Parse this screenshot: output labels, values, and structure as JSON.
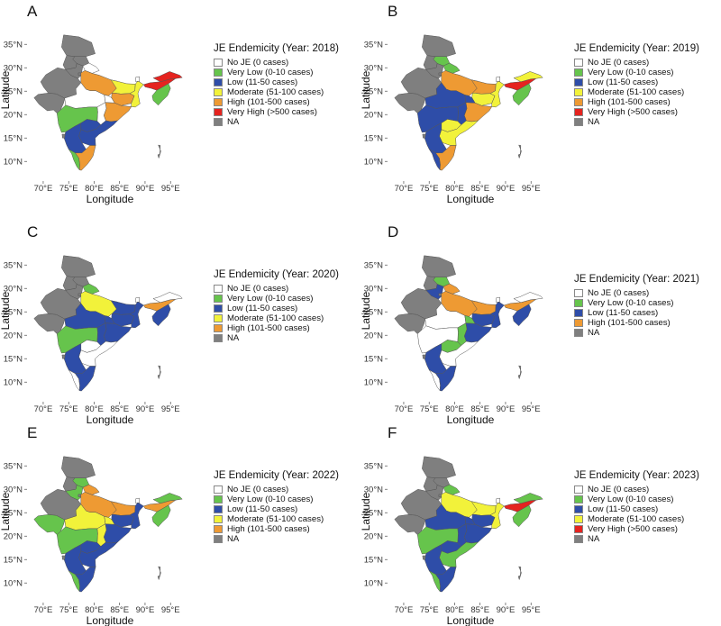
{
  "colors": {
    "No JE": "#ffffff",
    "Very Low": "#66c44c",
    "Low": "#2e4da8",
    "Moderate": "#f2f23a",
    "High": "#ee9a33",
    "Very High": "#e5231f",
    "NA": "#7f7f7f"
  },
  "labels": {
    "No JE": "No JE (0 cases)",
    "Very Low": "Very Low (0-10 cases)",
    "Low": "Low (11-50 cases)",
    "Moderate": "Moderate (51-100 cases)",
    "High": "High (101-500 cases)",
    "Very High": "Very High (>500 cases)",
    "NA": "NA"
  },
  "axes": {
    "x_label": "Longitude",
    "y_label": "Latitude",
    "x_ticks": [
      "70°E",
      "75°E",
      "80°E",
      "85°E",
      "90°E",
      "95°E"
    ],
    "y_ticks": [
      "10°N",
      "15°N",
      "20°N",
      "25°N",
      "30°N",
      "35°N"
    ]
  },
  "panels": [
    {
      "letter": "A",
      "legend_title": "JE Endemicity (Year: 2018)",
      "legend": [
        "No JE",
        "Very Low",
        "Low",
        "Moderate",
        "High",
        "Very High",
        "NA"
      ],
      "regions": {
        "jk": "NA",
        "hp": "NA",
        "pb": "NA",
        "uk": "No JE",
        "hr": "NA",
        "dl": "NA",
        "rj": "NA",
        "gj": "NA",
        "up": "High",
        "mp": "No JE",
        "br": "Moderate",
        "jh": "High",
        "wb": "Moderate",
        "od": "High",
        "cg": "No JE",
        "mh": "Very Low",
        "ts": "Low",
        "ap": "Low",
        "ka": "Low",
        "kl": "Very Low",
        "tn": "High",
        "go": "NA",
        "sk": "No JE",
        "as": "Very High",
        "ar": "Very High",
        "ne": "Very Low",
        "an": "NA"
      }
    },
    {
      "letter": "B",
      "legend_title": "JE Endemicity (Year: 2019)",
      "legend": [
        "No JE",
        "Very Low",
        "Low",
        "Moderate",
        "High",
        "Very High",
        "NA"
      ],
      "regions": {
        "jk": "NA",
        "hp": "Very Low",
        "pb": "NA",
        "uk": "Very Low",
        "hr": "NA",
        "dl": "NA",
        "rj": "NA",
        "gj": "NA",
        "up": "High",
        "mp": "Low",
        "br": "High",
        "jh": "Moderate",
        "wb": "Moderate",
        "od": "High",
        "cg": "Low",
        "mh": "Low",
        "ts": "Moderate",
        "ap": "Moderate",
        "ka": "Low",
        "kl": "Low",
        "tn": "High",
        "go": "NA",
        "sk": "No JE",
        "as": "Very High",
        "ar": "Moderate",
        "ne": "Very Low",
        "an": "NA"
      }
    },
    {
      "letter": "C",
      "legend_title": "JE Endemicity (Year: 2020)",
      "legend": [
        "No JE",
        "Very Low",
        "Low",
        "Moderate",
        "High",
        "NA"
      ],
      "regions": {
        "jk": "NA",
        "hp": "NA",
        "pb": "NA",
        "uk": "Very Low",
        "hr": "NA",
        "dl": "NA",
        "rj": "NA",
        "gj": "NA",
        "up": "Moderate",
        "mp": "Low",
        "br": "Low",
        "jh": "Low",
        "wb": "Low",
        "od": "Low",
        "cg": "Low",
        "mh": "Very Low",
        "ts": "No JE",
        "ap": "No JE",
        "ka": "Low",
        "kl": "No JE",
        "tn": "Low",
        "go": "NA",
        "sk": "No JE",
        "as": "High",
        "ar": "No JE",
        "ne": "Low",
        "an": "NA"
      }
    },
    {
      "letter": "D",
      "legend_title": "JE Endemicity (Year: 2021)",
      "legend": [
        "No JE",
        "Very Low",
        "Low",
        "High",
        "NA"
      ],
      "regions": {
        "jk": "NA",
        "hp": "Very Low",
        "pb": "NA",
        "uk": "High",
        "hr": "Low",
        "dl": "NA",
        "rj": "NA",
        "gj": "NA",
        "up": "High",
        "mp": "No JE",
        "br": "High",
        "jh": "Low",
        "wb": "Low",
        "od": "Low",
        "cg": "Very Low",
        "mh": "No JE",
        "ts": "Very Low",
        "ap": "No JE",
        "ka": "Low",
        "kl": "No JE",
        "tn": "Low",
        "go": "NA",
        "sk": "No JE",
        "as": "High",
        "ar": "No JE",
        "ne": "Low",
        "an": "NA"
      }
    },
    {
      "letter": "E",
      "legend_title": "JE Endemicity (Year: 2022)",
      "legend": [
        "No JE",
        "Very Low",
        "Low",
        "Moderate",
        "High",
        "NA"
      ],
      "regions": {
        "jk": "NA",
        "hp": "Very Low",
        "pb": "NA",
        "uk": "High",
        "hr": "Very Low",
        "dl": "NA",
        "rj": "NA",
        "gj": "Very Low",
        "up": "High",
        "mp": "Moderate",
        "br": "High",
        "jh": "Low",
        "wb": "Low",
        "od": "Low",
        "cg": "Moderate",
        "mh": "Very Low",
        "ts": "Low",
        "ap": "Low",
        "ka": "Low",
        "kl": "Very Low",
        "tn": "Low",
        "go": "NA",
        "sk": "No JE",
        "as": "High",
        "ar": "Very Low",
        "ne": "Very Low",
        "an": "NA"
      }
    },
    {
      "letter": "F",
      "legend_title": "JE Endemicity (Year: 2023)",
      "legend": [
        "No JE",
        "Very Low",
        "Low",
        "Moderate",
        "Very High",
        "NA"
      ],
      "regions": {
        "jk": "NA",
        "hp": "NA",
        "pb": "NA",
        "uk": "Very Low",
        "hr": "NA",
        "dl": "NA",
        "rj": "NA",
        "gj": "NA",
        "up": "Moderate",
        "mp": "Low",
        "br": "Moderate",
        "jh": "Low",
        "wb": "Moderate",
        "od": "Low",
        "cg": "Low",
        "mh": "Very Low",
        "ts": "Low",
        "ap": "Very Low",
        "ka": "Low",
        "kl": "Very Low",
        "tn": "Low",
        "go": "NA",
        "sk": "No JE",
        "as": "Very High",
        "ar": "Very Low",
        "ne": "Very Low",
        "an": "NA"
      }
    }
  ]
}
